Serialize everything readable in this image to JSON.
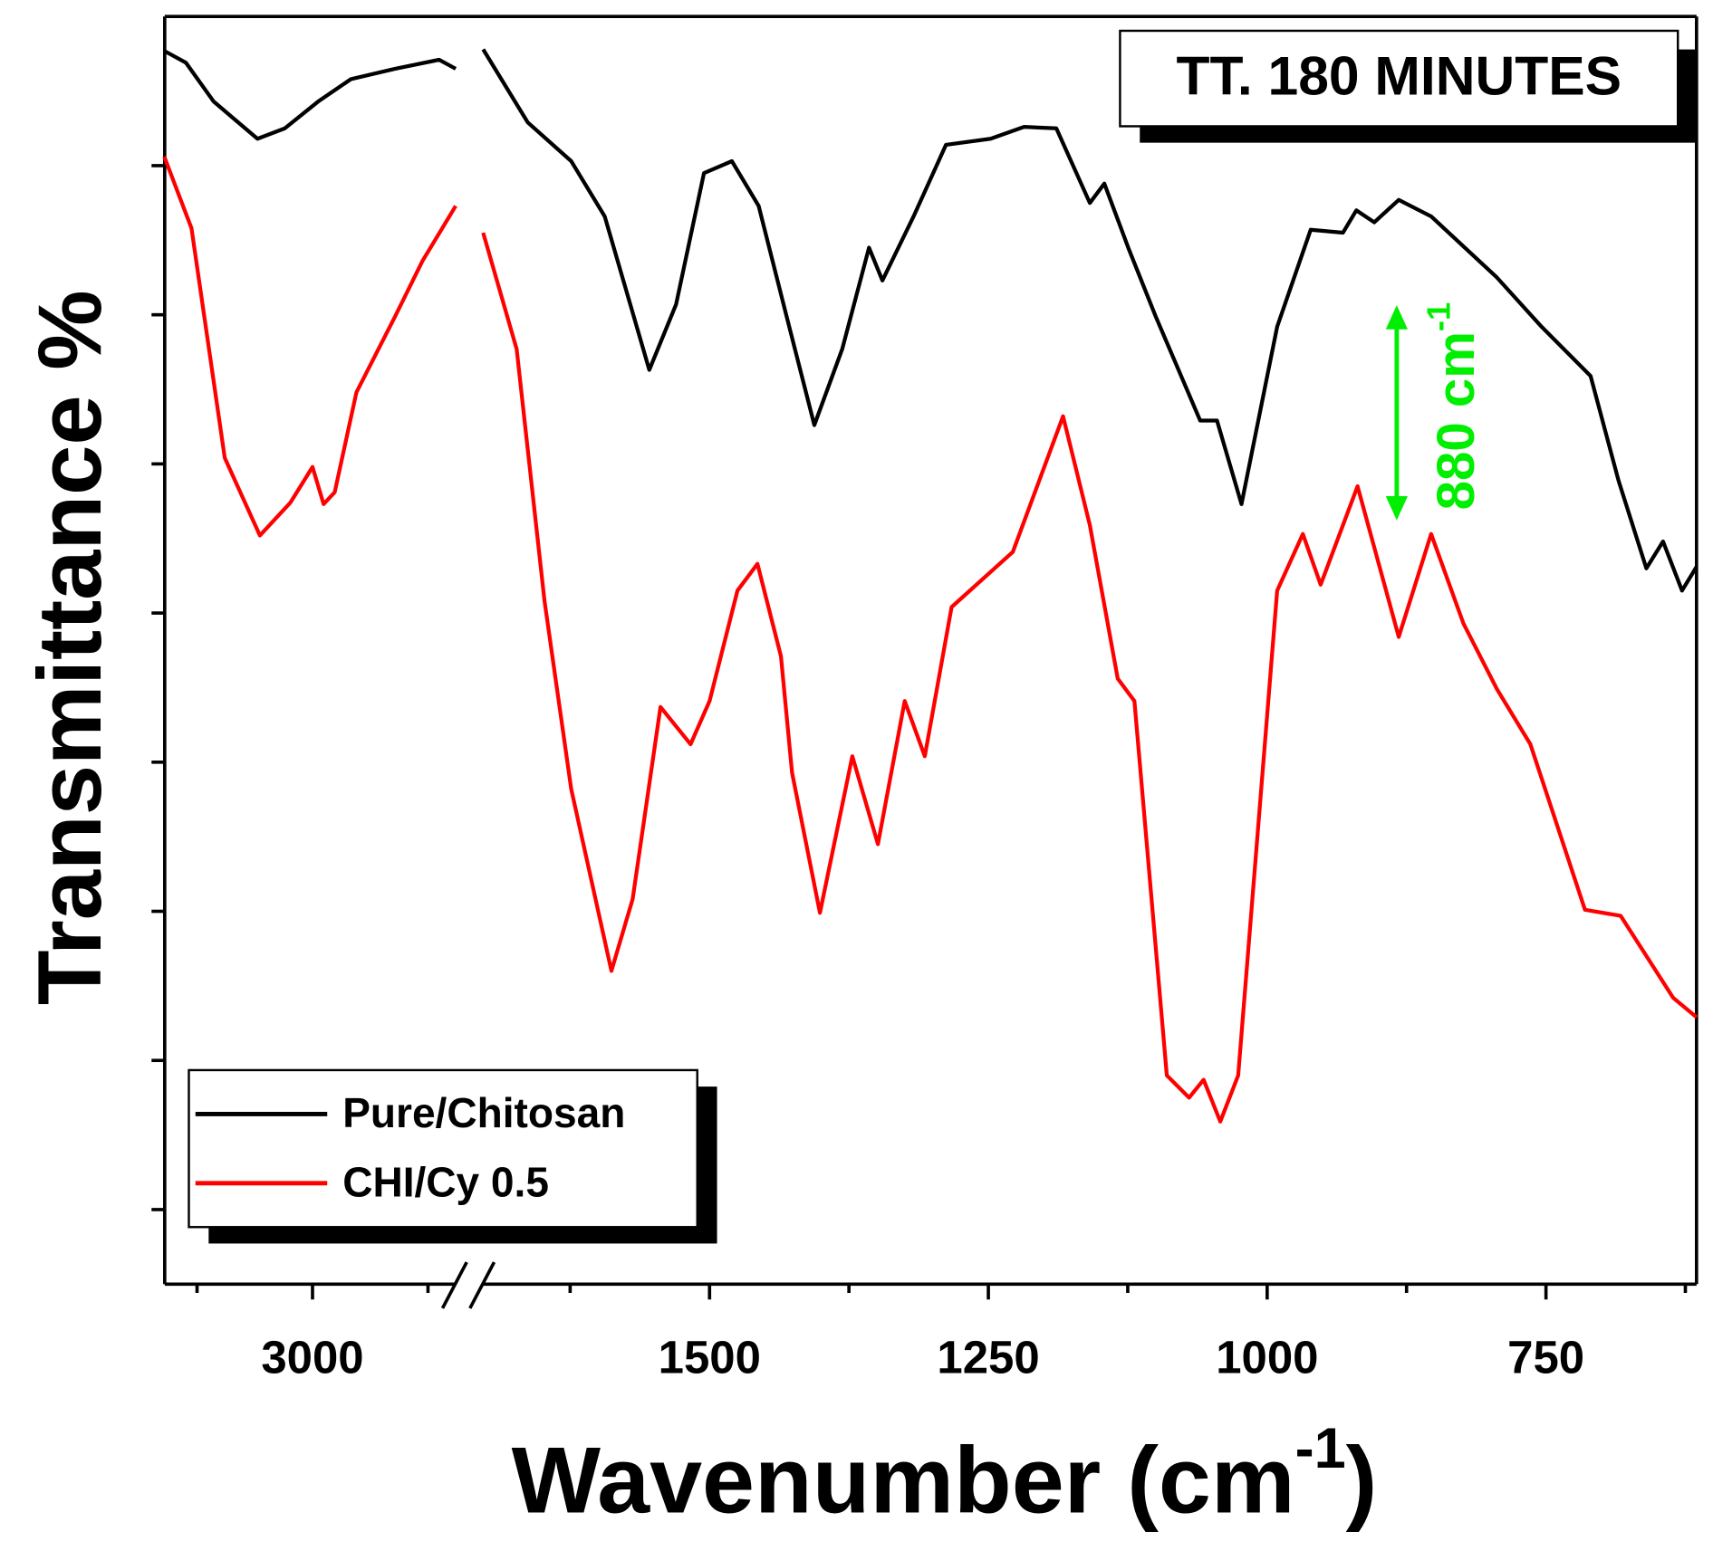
{
  "chart_data": {
    "type": "line",
    "title": "TT. 180 MINUTES",
    "y_label": "Transmittance %",
    "x_label": {
      "text": "Wavenumber (cm",
      "sup": "-1",
      "end": ")"
    },
    "annotation": {
      "text": "880 cm",
      "sup": "-1",
      "color": "#00ee00"
    },
    "legend": "lower left",
    "x_segments": [
      {
        "xlim": [
          3320,
          2690
        ],
        "xticks": [
          3000
        ],
        "xminorticks": [
          3250,
          2750
        ]
      },
      {
        "xlim": [
          1703,
          615
        ],
        "xticks": [
          1500,
          1250,
          1000,
          750
        ],
        "xminorticks": [
          1625,
          1375,
          1125,
          875,
          625
        ]
      }
    ],
    "ylim": [
      0,
      8.5
    ],
    "yticks": [
      0.5,
      1.5,
      2.5,
      3.5,
      4.5,
      5.5,
      6.5,
      7.5
    ],
    "series": [
      {
        "name": "Pure/Chitosan",
        "color": "#000000",
        "x": [
          3321,
          3274,
          3214,
          3119,
          3060,
          2988,
          2917,
          2821,
          2726,
          2690,
          null,
          1703,
          1663,
          1624,
          1594,
          1554,
          1530,
          1505,
          1480,
          1456,
          1431,
          1406,
          1381,
          1357,
          1345,
          1317,
          1288,
          1248,
          1218,
          1189,
          1159,
          1146,
          1124,
          1100,
          1060,
          1045,
          1023,
          991,
          961,
          932,
          920,
          904,
          882,
          853,
          794,
          754,
          710,
          685,
          660,
          645,
          628,
          615
        ],
        "values": [
          8.27,
          8.19,
          7.93,
          7.68,
          7.75,
          7.93,
          8.08,
          8.15,
          8.21,
          8.15,
          null,
          8.28,
          7.79,
          7.53,
          7.16,
          6.13,
          6.57,
          7.45,
          7.53,
          7.23,
          6.49,
          5.76,
          6.27,
          6.95,
          6.73,
          7.16,
          7.64,
          7.68,
          7.76,
          7.75,
          7.25,
          7.38,
          6.94,
          6.49,
          5.79,
          5.79,
          5.23,
          6.42,
          7.07,
          7.05,
          7.2,
          7.12,
          7.27,
          7.16,
          6.75,
          6.42,
          6.09,
          5.39,
          4.8,
          4.98,
          4.65,
          4.81
        ]
      },
      {
        "name": "CHI/Cy 0.5",
        "color": "#ff0000",
        "x": [
          3321,
          3262,
          3190,
          3114,
          3048,
          3000,
          2976,
          2952,
          2905,
          2821,
          2762,
          2690,
          null,
          1703,
          1673,
          1648,
          1624,
          1588,
          1569,
          1544,
          1517,
          1500,
          1475,
          1457,
          1436,
          1426,
          1401,
          1372,
          1349,
          1325,
          1307,
          1283,
          1228,
          1183,
          1159,
          1134,
          1119,
          1090,
          1070,
          1057,
          1042,
          1026,
          991,
          968,
          952,
          919,
          882,
          853,
          824,
          794,
          764,
          715,
          683,
          636,
          615
        ],
        "values": [
          7.56,
          7.08,
          5.54,
          5.02,
          5.24,
          5.48,
          5.23,
          5.31,
          5.98,
          6.49,
          6.86,
          7.23,
          null,
          7.05,
          6.27,
          4.58,
          3.32,
          2.1,
          2.58,
          3.87,
          3.62,
          3.91,
          4.65,
          4.83,
          4.21,
          3.43,
          2.49,
          3.54,
          2.95,
          3.91,
          3.54,
          4.54,
          4.91,
          5.82,
          5.09,
          4.06,
          3.91,
          1.4,
          1.25,
          1.37,
          1.09,
          1.4,
          4.65,
          5.03,
          4.69,
          5.35,
          4.34,
          5.03,
          4.43,
          3.99,
          3.62,
          2.51,
          2.47,
          1.92,
          1.79
        ]
      }
    ]
  }
}
